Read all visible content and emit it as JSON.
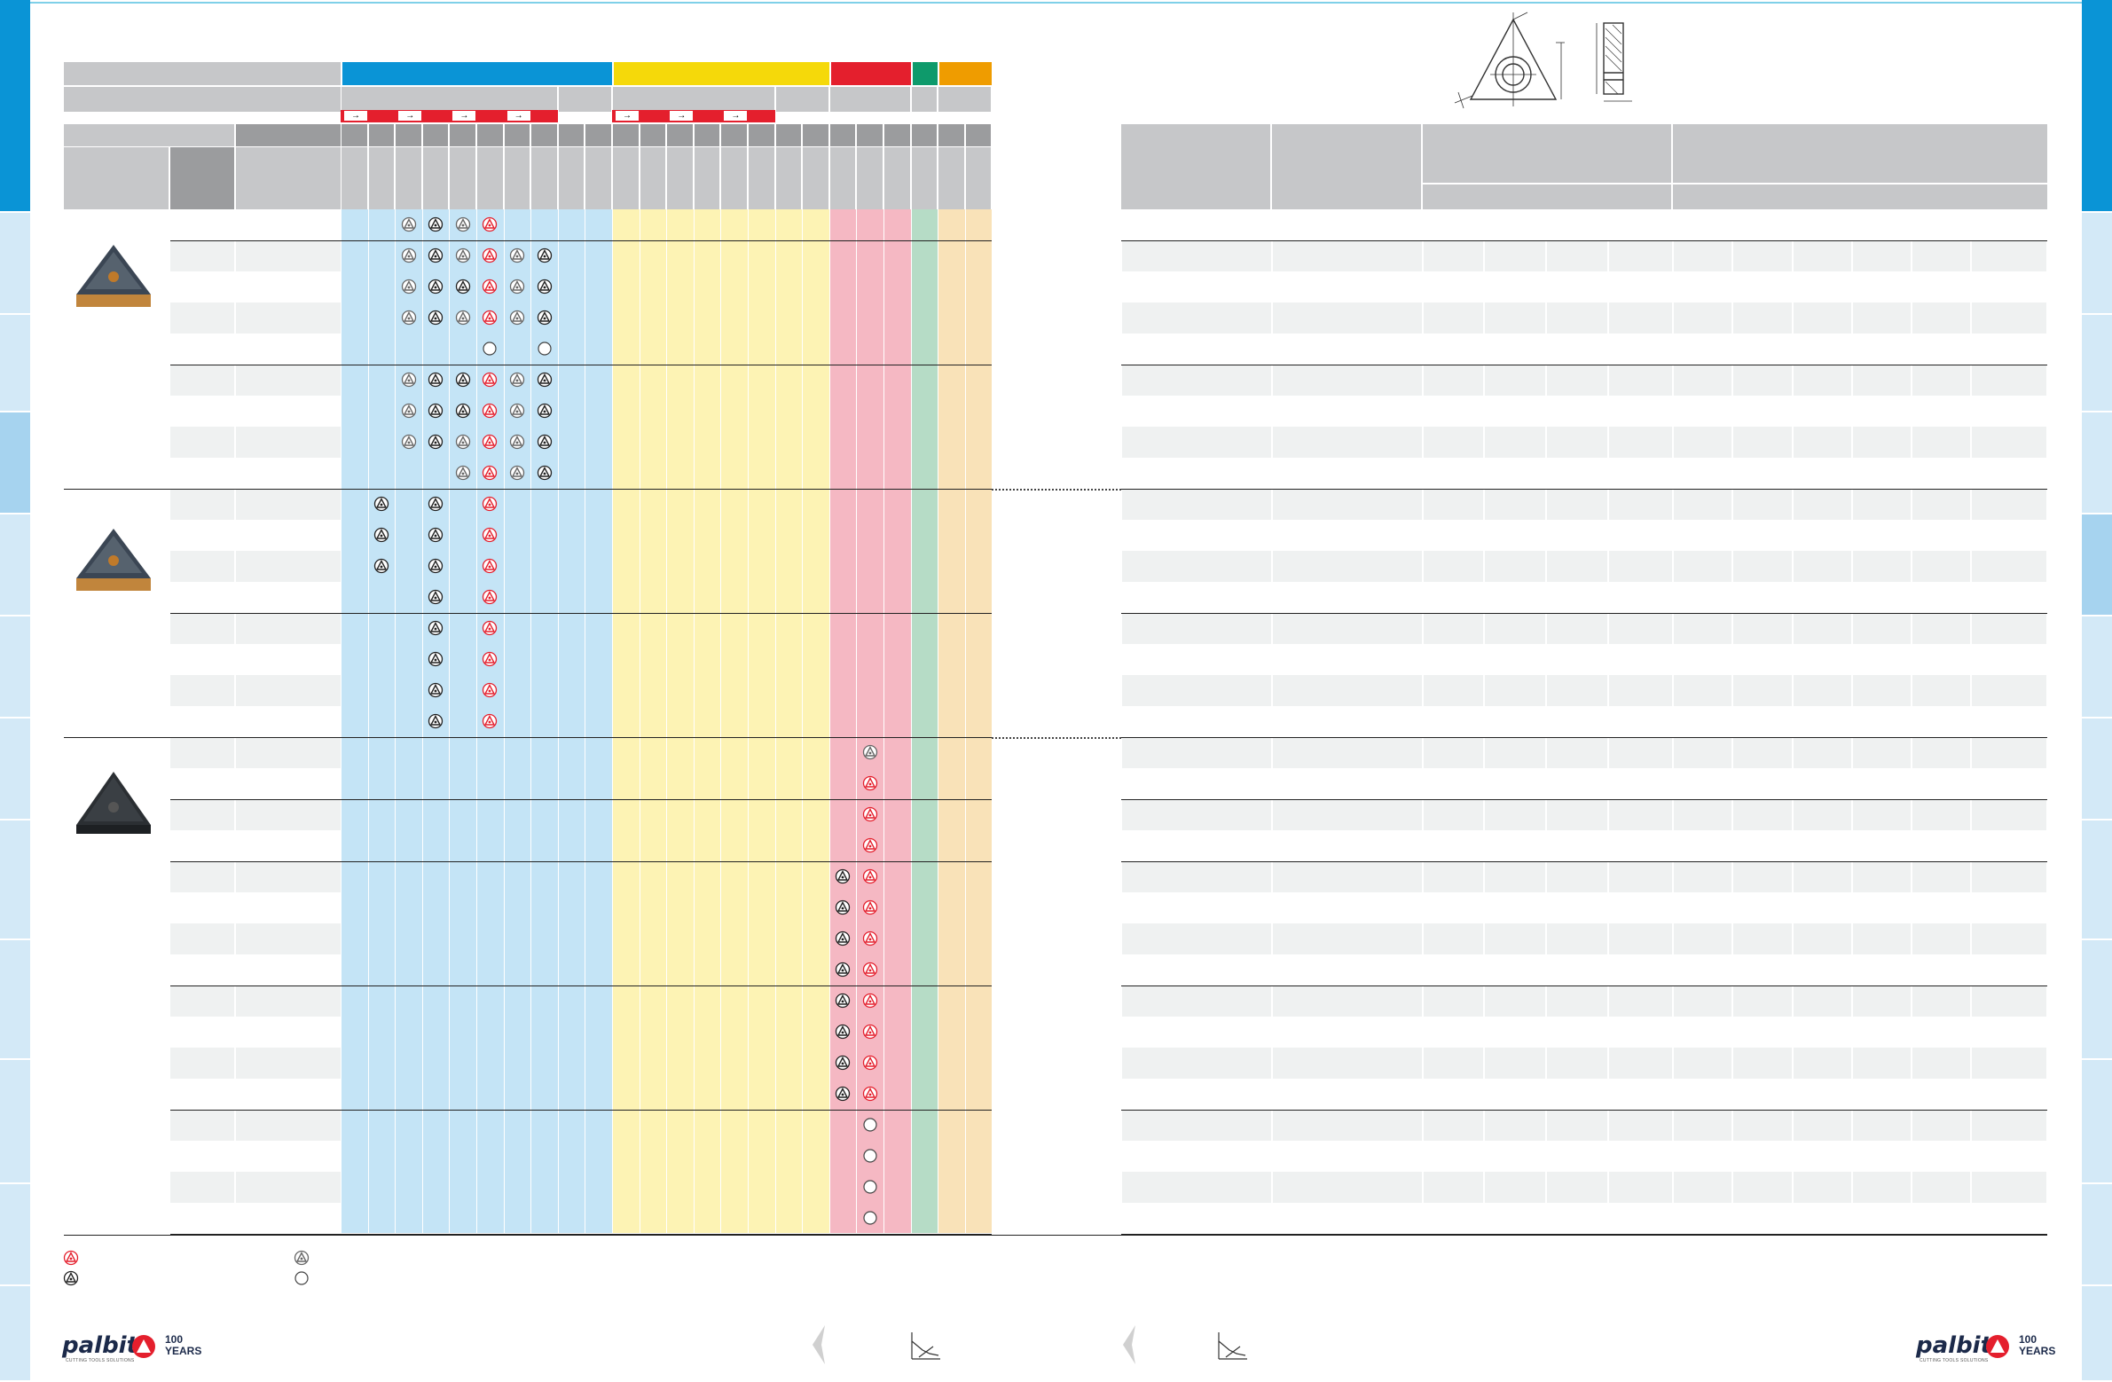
{
  "page": {
    "left_logo_text": "palbit",
    "right_logo_text": "palbit",
    "anniversary_badge": "100 YEARS",
    "left_tagline": "CUTTING TOOLS SOLUTIONS",
    "right_tagline": "CUTTING TOOLS SOLUTIONS"
  },
  "colors": {
    "tab_active": "#0a94d6",
    "tab_inactive": "#d3e9f7",
    "group_P": "#0a94d6",
    "group_M": "#f5d90a",
    "group_K": "#e41f2d",
    "group_N": "#0e9a6b",
    "group_S": "#ef9c00",
    "light_P": "#c4e4f6",
    "light_M": "#fdf3b4",
    "light_K": "#f5b8c3",
    "light_N": "#b6dcc6",
    "light_S": "#f9e2b8",
    "header_gray": "#c6c7c9",
    "header_dark": "#9b9c9e",
    "row_alt": "#eff1f1"
  },
  "icons": {
    "symbol_red": "coated-grade-red-triangle-icon",
    "symbol_dark": "coated-grade-dark-triangle-icon",
    "symbol_gray": "alternative-grade-gray-triangle-icon",
    "symbol_circle": "on-request-circle-icon",
    "insert_diagram": "triangular-insert-diagram",
    "chart_icon": "cutting-conditions-chart-icon",
    "prev_page_icon": "page-back-chevron-icon"
  },
  "table": {
    "arrow_symbols": [
      "→",
      "→",
      "→",
      "→",
      "→",
      "→",
      "→"
    ]
  }
}
